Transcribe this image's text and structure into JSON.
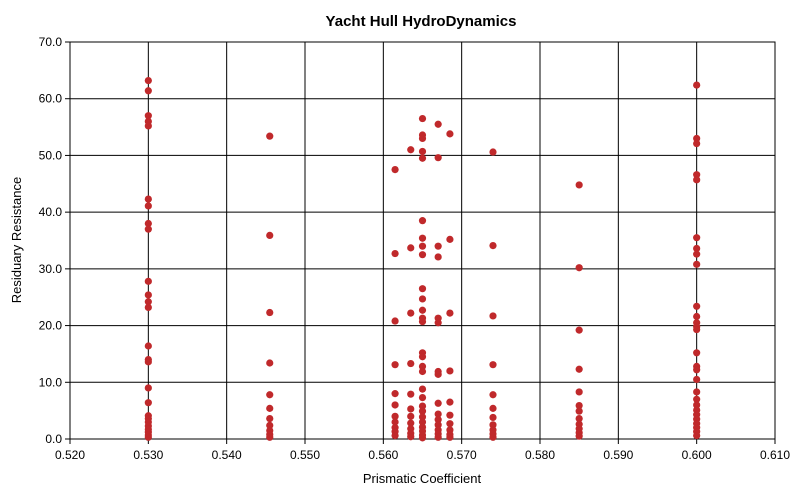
{
  "chart_data": {
    "type": "scatter",
    "title": "Yacht Hull HydroDynamics",
    "xlabel": "Prismatic Coefficient",
    "ylabel": "Residuary Resistance",
    "xlim": [
      0.52,
      0.61
    ],
    "ylim": [
      0,
      70
    ],
    "grid": true,
    "legend": "none",
    "marker_color": "#c0292b",
    "x_ticks": [
      "0.520",
      "0.530",
      "0.540",
      "0.550",
      "0.560",
      "0.570",
      "0.580",
      "0.590",
      "0.600",
      "0.610"
    ],
    "y_ticks": [
      "0.0",
      "10.0",
      "20.0",
      "30.0",
      "40.0",
      "50.0",
      "60.0",
      "70.0"
    ],
    "points": [
      [
        0.53,
        63.2
      ],
      [
        0.53,
        61.4
      ],
      [
        0.53,
        57.0
      ],
      [
        0.53,
        56.0
      ],
      [
        0.53,
        55.2
      ],
      [
        0.53,
        42.3
      ],
      [
        0.53,
        41.1
      ],
      [
        0.53,
        38.0
      ],
      [
        0.53,
        37.0
      ],
      [
        0.53,
        27.8
      ],
      [
        0.53,
        25.4
      ],
      [
        0.53,
        24.2
      ],
      [
        0.53,
        23.2
      ],
      [
        0.53,
        16.4
      ],
      [
        0.53,
        14.0
      ],
      [
        0.53,
        13.6
      ],
      [
        0.53,
        9.0
      ],
      [
        0.53,
        6.4
      ],
      [
        0.53,
        4.1
      ],
      [
        0.53,
        3.6
      ],
      [
        0.53,
        3.0
      ],
      [
        0.53,
        2.3
      ],
      [
        0.53,
        1.7
      ],
      [
        0.53,
        1.2
      ],
      [
        0.53,
        0.7
      ],
      [
        0.53,
        0.3
      ],
      [
        0.5455,
        53.4
      ],
      [
        0.5455,
        35.9
      ],
      [
        0.5455,
        22.3
      ],
      [
        0.5455,
        13.4
      ],
      [
        0.5455,
        7.8
      ],
      [
        0.5455,
        5.4
      ],
      [
        0.5455,
        3.6
      ],
      [
        0.5455,
        2.4
      ],
      [
        0.5455,
        1.5
      ],
      [
        0.5455,
        0.8
      ],
      [
        0.5455,
        0.3
      ],
      [
        0.5615,
        47.5
      ],
      [
        0.5615,
        32.7
      ],
      [
        0.5615,
        20.8
      ],
      [
        0.5615,
        13.1
      ],
      [
        0.5615,
        8.0
      ],
      [
        0.5615,
        6.0
      ],
      [
        0.5615,
        4.0
      ],
      [
        0.5615,
        3.0
      ],
      [
        0.5615,
        2.0
      ],
      [
        0.5615,
        1.3
      ],
      [
        0.5615,
        0.6
      ],
      [
        0.5635,
        51.0
      ],
      [
        0.5635,
        33.7
      ],
      [
        0.5635,
        22.2
      ],
      [
        0.5635,
        13.3
      ],
      [
        0.5635,
        7.9
      ],
      [
        0.5635,
        5.3
      ],
      [
        0.5635,
        4.0
      ],
      [
        0.5635,
        2.8
      ],
      [
        0.5635,
        1.8
      ],
      [
        0.5635,
        1.0
      ],
      [
        0.5635,
        0.4
      ],
      [
        0.565,
        56.5
      ],
      [
        0.565,
        53.6
      ],
      [
        0.565,
        53.0
      ],
      [
        0.565,
        50.7
      ],
      [
        0.565,
        49.5
      ],
      [
        0.565,
        38.5
      ],
      [
        0.565,
        35.4
      ],
      [
        0.565,
        34.0
      ],
      [
        0.565,
        32.5
      ],
      [
        0.565,
        26.5
      ],
      [
        0.565,
        24.7
      ],
      [
        0.565,
        22.7
      ],
      [
        0.565,
        21.3
      ],
      [
        0.565,
        20.7
      ],
      [
        0.565,
        15.2
      ],
      [
        0.565,
        14.5
      ],
      [
        0.565,
        12.8
      ],
      [
        0.565,
        11.9
      ],
      [
        0.565,
        8.8
      ],
      [
        0.565,
        7.3
      ],
      [
        0.565,
        5.8
      ],
      [
        0.565,
        4.9
      ],
      [
        0.565,
        3.9
      ],
      [
        0.565,
        3.0
      ],
      [
        0.565,
        2.1
      ],
      [
        0.565,
        1.4
      ],
      [
        0.565,
        0.7
      ],
      [
        0.565,
        0.2
      ],
      [
        0.567,
        55.5
      ],
      [
        0.567,
        49.6
      ],
      [
        0.567,
        34.0
      ],
      [
        0.567,
        32.1
      ],
      [
        0.567,
        21.3
      ],
      [
        0.567,
        20.5
      ],
      [
        0.567,
        11.9
      ],
      [
        0.567,
        11.4
      ],
      [
        0.567,
        6.3
      ],
      [
        0.567,
        4.4
      ],
      [
        0.567,
        3.4
      ],
      [
        0.567,
        2.5
      ],
      [
        0.567,
        1.6
      ],
      [
        0.567,
        0.9
      ],
      [
        0.567,
        0.3
      ],
      [
        0.5685,
        53.8
      ],
      [
        0.5685,
        35.2
      ],
      [
        0.5685,
        22.2
      ],
      [
        0.5685,
        12.0
      ],
      [
        0.5685,
        6.5
      ],
      [
        0.5685,
        4.2
      ],
      [
        0.5685,
        2.7
      ],
      [
        0.5685,
        1.6
      ],
      [
        0.5685,
        0.8
      ],
      [
        0.5685,
        0.3
      ],
      [
        0.574,
        50.6
      ],
      [
        0.574,
        34.1
      ],
      [
        0.574,
        21.7
      ],
      [
        0.574,
        13.1
      ],
      [
        0.574,
        7.8
      ],
      [
        0.574,
        5.4
      ],
      [
        0.574,
        3.8
      ],
      [
        0.574,
        2.5
      ],
      [
        0.574,
        1.6
      ],
      [
        0.574,
        0.9
      ],
      [
        0.574,
        0.3
      ],
      [
        0.585,
        44.8
      ],
      [
        0.585,
        30.2
      ],
      [
        0.585,
        19.2
      ],
      [
        0.585,
        12.3
      ],
      [
        0.585,
        8.3
      ],
      [
        0.585,
        5.9
      ],
      [
        0.585,
        4.9
      ],
      [
        0.585,
        3.6
      ],
      [
        0.585,
        2.6
      ],
      [
        0.585,
        1.8
      ],
      [
        0.585,
        1.1
      ],
      [
        0.585,
        0.5
      ],
      [
        0.6,
        62.4
      ],
      [
        0.6,
        53.0
      ],
      [
        0.6,
        52.1
      ],
      [
        0.6,
        46.6
      ],
      [
        0.6,
        45.7
      ],
      [
        0.6,
        35.5
      ],
      [
        0.6,
        33.6
      ],
      [
        0.6,
        32.6
      ],
      [
        0.6,
        30.8
      ],
      [
        0.6,
        23.4
      ],
      [
        0.6,
        21.6
      ],
      [
        0.6,
        20.5
      ],
      [
        0.6,
        19.8
      ],
      [
        0.6,
        19.3
      ],
      [
        0.6,
        15.2
      ],
      [
        0.6,
        12.8
      ],
      [
        0.6,
        12.2
      ],
      [
        0.6,
        10.5
      ],
      [
        0.6,
        8.3
      ],
      [
        0.6,
        7.0
      ],
      [
        0.6,
        6.0
      ],
      [
        0.6,
        5.1
      ],
      [
        0.6,
        4.3
      ],
      [
        0.6,
        3.5
      ],
      [
        0.6,
        2.7
      ],
      [
        0.6,
        2.0
      ],
      [
        0.6,
        1.3
      ],
      [
        0.6,
        0.6
      ]
    ]
  }
}
